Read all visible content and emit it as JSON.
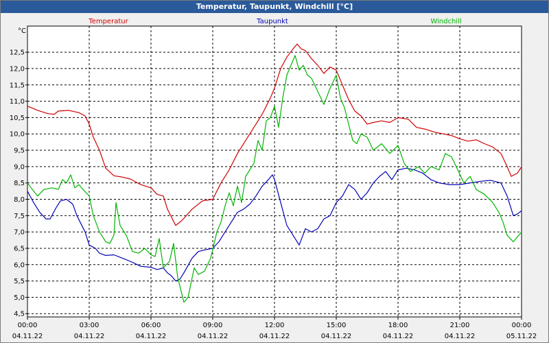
{
  "window": {
    "title": "Temperatur, Taupunkt, Windchill [°C]"
  },
  "chart_data": {
    "type": "line",
    "ylabel": "°C",
    "ylim": [
      4.4,
      13.3
    ],
    "y_ticks": [
      "4,5",
      "5,0",
      "5,5",
      "6,0",
      "6,5",
      "7,0",
      "7,5",
      "8,0",
      "8,5",
      "9,0",
      "9,5",
      "10,0",
      "10,5",
      "11,0",
      "11,5",
      "12,0",
      "12,5"
    ],
    "x_ticks": [
      {
        "time": "00:00",
        "date": "04.11.22"
      },
      {
        "time": "03:00",
        "date": "04.11.22"
      },
      {
        "time": "06:00",
        "date": "04.11.22"
      },
      {
        "time": "09:00",
        "date": "04.11.22"
      },
      {
        "time": "12:00",
        "date": "04.11.22"
      },
      {
        "time": "15:00",
        "date": "04.11.22"
      },
      {
        "time": "18:00",
        "date": "04.11.22"
      },
      {
        "time": "21:00",
        "date": "04.11.22"
      },
      {
        "time": "00:00",
        "date": "05.11.22"
      }
    ],
    "x_hours": [
      0,
      3,
      6,
      9,
      12,
      15,
      18,
      21,
      24
    ],
    "grid": true,
    "series": [
      {
        "name": "Temperatur",
        "color": "#d00000",
        "points": [
          [
            0,
            10.85
          ],
          [
            0.5,
            10.72
          ],
          [
            1,
            10.62
          ],
          [
            1.3,
            10.6
          ],
          [
            1.5,
            10.7
          ],
          [
            2,
            10.72
          ],
          [
            2.5,
            10.65
          ],
          [
            2.8,
            10.55
          ],
          [
            3,
            10.3
          ],
          [
            3.2,
            9.9
          ],
          [
            3.5,
            9.5
          ],
          [
            3.8,
            8.95
          ],
          [
            4.2,
            8.72
          ],
          [
            4.6,
            8.68
          ],
          [
            5,
            8.62
          ],
          [
            5.5,
            8.45
          ],
          [
            6,
            8.35
          ],
          [
            6.3,
            8.15
          ],
          [
            6.6,
            8.1
          ],
          [
            6.8,
            7.7
          ],
          [
            7.2,
            7.2
          ],
          [
            7.5,
            7.35
          ],
          [
            8,
            7.7
          ],
          [
            8.5,
            7.95
          ],
          [
            9,
            8.0
          ],
          [
            9.4,
            8.5
          ],
          [
            9.8,
            8.9
          ],
          [
            10.2,
            9.4
          ],
          [
            10.6,
            9.8
          ],
          [
            11,
            10.2
          ],
          [
            11.4,
            10.6
          ],
          [
            11.8,
            11.1
          ],
          [
            12,
            11.4
          ],
          [
            12.3,
            12.0
          ],
          [
            12.6,
            12.35
          ],
          [
            12.9,
            12.6
          ],
          [
            13.1,
            12.75
          ],
          [
            13.3,
            12.6
          ],
          [
            13.5,
            12.55
          ],
          [
            13.8,
            12.3
          ],
          [
            14.1,
            12.1
          ],
          [
            14.4,
            11.85
          ],
          [
            14.7,
            12.05
          ],
          [
            15,
            11.95
          ],
          [
            15.3,
            11.5
          ],
          [
            15.6,
            11.05
          ],
          [
            15.9,
            10.7
          ],
          [
            16.2,
            10.55
          ],
          [
            16.5,
            10.3
          ],
          [
            16.8,
            10.35
          ],
          [
            17.2,
            10.4
          ],
          [
            17.6,
            10.35
          ],
          [
            18,
            10.5
          ],
          [
            18.5,
            10.45
          ],
          [
            18.9,
            10.2
          ],
          [
            19.3,
            10.15
          ],
          [
            19.8,
            10.05
          ],
          [
            20.2,
            10.0
          ],
          [
            20.6,
            9.95
          ],
          [
            21,
            9.85
          ],
          [
            21.4,
            9.78
          ],
          [
            21.8,
            9.82
          ],
          [
            22.2,
            9.7
          ],
          [
            22.6,
            9.6
          ],
          [
            23,
            9.4
          ],
          [
            23.3,
            9.0
          ],
          [
            23.5,
            8.7
          ],
          [
            23.8,
            8.8
          ],
          [
            24,
            9.0
          ]
        ]
      },
      {
        "name": "Taupunkt",
        "color": "#0000b4",
        "points": [
          [
            0,
            8.25
          ],
          [
            0.3,
            7.9
          ],
          [
            0.6,
            7.6
          ],
          [
            0.9,
            7.4
          ],
          [
            1.1,
            7.4
          ],
          [
            1.4,
            7.75
          ],
          [
            1.6,
            7.95
          ],
          [
            1.9,
            8.0
          ],
          [
            2.2,
            7.85
          ],
          [
            2.4,
            7.5
          ],
          [
            2.6,
            7.25
          ],
          [
            2.8,
            7.0
          ],
          [
            3,
            6.6
          ],
          [
            3.3,
            6.5
          ],
          [
            3.5,
            6.35
          ],
          [
            3.8,
            6.28
          ],
          [
            4.2,
            6.3
          ],
          [
            4.6,
            6.2
          ],
          [
            5,
            6.1
          ],
          [
            5.5,
            5.95
          ],
          [
            6,
            5.92
          ],
          [
            6.3,
            5.85
          ],
          [
            6.6,
            5.9
          ],
          [
            6.8,
            5.75
          ],
          [
            7,
            5.65
          ],
          [
            7.2,
            5.5
          ],
          [
            7.4,
            5.55
          ],
          [
            7.6,
            5.75
          ],
          [
            8,
            6.2
          ],
          [
            8.3,
            6.4
          ],
          [
            8.6,
            6.45
          ],
          [
            9,
            6.5
          ],
          [
            9.3,
            6.7
          ],
          [
            9.6,
            7.0
          ],
          [
            9.9,
            7.3
          ],
          [
            10.2,
            7.6
          ],
          [
            10.5,
            7.7
          ],
          [
            10.8,
            7.85
          ],
          [
            11.1,
            8.1
          ],
          [
            11.4,
            8.4
          ],
          [
            11.7,
            8.6
          ],
          [
            11.9,
            8.75
          ],
          [
            12,
            8.6
          ],
          [
            12.3,
            7.9
          ],
          [
            12.6,
            7.2
          ],
          [
            12.9,
            6.9
          ],
          [
            13.2,
            6.6
          ],
          [
            13.5,
            7.1
          ],
          [
            13.8,
            7.0
          ],
          [
            14.1,
            7.1
          ],
          [
            14.4,
            7.4
          ],
          [
            14.7,
            7.5
          ],
          [
            15,
            7.9
          ],
          [
            15.3,
            8.1
          ],
          [
            15.6,
            8.45
          ],
          [
            15.9,
            8.3
          ],
          [
            16.2,
            8.0
          ],
          [
            16.5,
            8.2
          ],
          [
            16.8,
            8.5
          ],
          [
            17.1,
            8.7
          ],
          [
            17.4,
            8.85
          ],
          [
            17.7,
            8.6
          ],
          [
            18,
            8.9
          ],
          [
            18.4,
            8.95
          ],
          [
            18.8,
            8.9
          ],
          [
            19.2,
            8.8
          ],
          [
            19.6,
            8.6
          ],
          [
            20,
            8.5
          ],
          [
            20.5,
            8.45
          ],
          [
            21,
            8.45
          ],
          [
            21.5,
            8.5
          ],
          [
            22,
            8.55
          ],
          [
            22.5,
            8.58
          ],
          [
            23,
            8.5
          ],
          [
            23.3,
            8.1
          ],
          [
            23.6,
            7.5
          ],
          [
            23.8,
            7.55
          ],
          [
            24,
            7.65
          ]
        ]
      },
      {
        "name": "Windchill",
        "color": "#00b400",
        "points": [
          [
            0,
            8.5
          ],
          [
            0.3,
            8.25
          ],
          [
            0.5,
            8.1
          ],
          [
            0.8,
            8.3
          ],
          [
            1.2,
            8.35
          ],
          [
            1.5,
            8.3
          ],
          [
            1.7,
            8.6
          ],
          [
            1.9,
            8.5
          ],
          [
            2.1,
            8.75
          ],
          [
            2.3,
            8.35
          ],
          [
            2.5,
            8.45
          ],
          [
            2.7,
            8.3
          ],
          [
            3,
            8.1
          ],
          [
            3.2,
            7.5
          ],
          [
            3.5,
            7.0
          ],
          [
            3.8,
            6.7
          ],
          [
            4,
            6.65
          ],
          [
            4.2,
            6.9
          ],
          [
            4.3,
            7.9
          ],
          [
            4.5,
            7.2
          ],
          [
            4.8,
            6.9
          ],
          [
            5.1,
            6.4
          ],
          [
            5.4,
            6.35
          ],
          [
            5.7,
            6.5
          ],
          [
            6,
            6.3
          ],
          [
            6.2,
            6.25
          ],
          [
            6.4,
            6.8
          ],
          [
            6.6,
            5.9
          ],
          [
            6.9,
            6.1
          ],
          [
            7.1,
            6.65
          ],
          [
            7.3,
            5.6
          ],
          [
            7.6,
            4.85
          ],
          [
            7.8,
            5.0
          ],
          [
            8.1,
            5.9
          ],
          [
            8.3,
            5.7
          ],
          [
            8.6,
            5.8
          ],
          [
            8.9,
            6.2
          ],
          [
            9.2,
            7.0
          ],
          [
            9.4,
            7.3
          ],
          [
            9.6,
            7.8
          ],
          [
            9.8,
            8.2
          ],
          [
            10,
            7.8
          ],
          [
            10.2,
            8.4
          ],
          [
            10.4,
            7.9
          ],
          [
            10.6,
            8.7
          ],
          [
            10.8,
            8.9
          ],
          [
            11,
            9.1
          ],
          [
            11.2,
            9.8
          ],
          [
            11.4,
            9.5
          ],
          [
            11.6,
            10.4
          ],
          [
            11.8,
            10.5
          ],
          [
            12,
            10.85
          ],
          [
            12.2,
            10.2
          ],
          [
            12.4,
            11.1
          ],
          [
            12.6,
            11.8
          ],
          [
            12.8,
            12.1
          ],
          [
            13,
            12.4
          ],
          [
            13.2,
            11.95
          ],
          [
            13.4,
            12.1
          ],
          [
            13.6,
            11.8
          ],
          [
            13.8,
            11.7
          ],
          [
            14.1,
            11.3
          ],
          [
            14.4,
            10.9
          ],
          [
            14.7,
            11.4
          ],
          [
            15,
            11.8
          ],
          [
            15.2,
            11.1
          ],
          [
            15.4,
            10.8
          ],
          [
            15.6,
            10.3
          ],
          [
            15.8,
            9.8
          ],
          [
            16,
            9.7
          ],
          [
            16.2,
            10.0
          ],
          [
            16.5,
            9.9
          ],
          [
            16.8,
            9.5
          ],
          [
            17.2,
            9.7
          ],
          [
            17.6,
            9.4
          ],
          [
            18,
            9.65
          ],
          [
            18.3,
            9.1
          ],
          [
            18.6,
            8.85
          ],
          [
            19,
            9.0
          ],
          [
            19.3,
            8.8
          ],
          [
            19.6,
            9.0
          ],
          [
            20,
            8.9
          ],
          [
            20.3,
            9.4
          ],
          [
            20.6,
            9.3
          ],
          [
            20.9,
            8.9
          ],
          [
            21.2,
            8.5
          ],
          [
            21.5,
            8.7
          ],
          [
            21.8,
            8.3
          ],
          [
            22.2,
            8.15
          ],
          [
            22.6,
            7.9
          ],
          [
            22.9,
            7.6
          ],
          [
            23.1,
            7.3
          ],
          [
            23.3,
            6.9
          ],
          [
            23.6,
            6.7
          ],
          [
            24,
            7.0
          ]
        ]
      }
    ]
  }
}
